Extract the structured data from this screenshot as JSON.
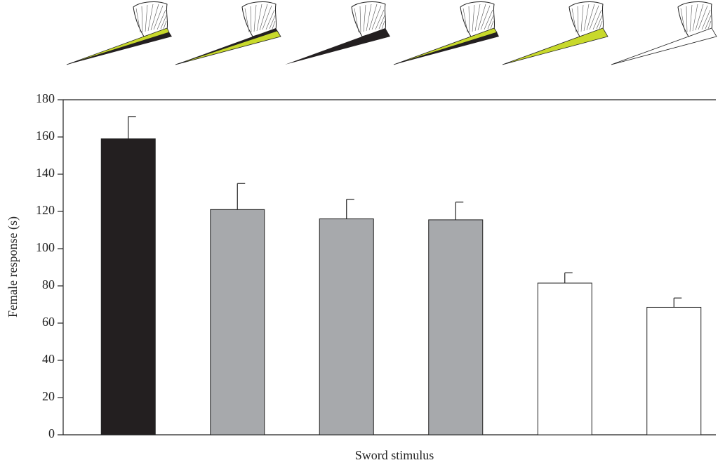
{
  "chart_data": {
    "type": "bar",
    "x_label": "Sword stimulus",
    "y_label": "Female response (s)",
    "categories": [
      null,
      null,
      null,
      null,
      null,
      null
    ],
    "values": [
      159,
      121,
      116,
      115.5,
      81.5,
      68.5
    ],
    "errors": [
      12,
      14,
      10.5,
      9.5,
      5.5,
      5
    ],
    "colors": [
      "#231f20",
      "#a7a9ac",
      "#a7a9ac",
      "#a7a9ac",
      "#ffffff",
      "#ffffff"
    ],
    "ylim": [
      0,
      180
    ],
    "yticks": [
      0,
      20,
      40,
      60,
      80,
      100,
      120,
      140,
      160,
      180
    ]
  }
}
